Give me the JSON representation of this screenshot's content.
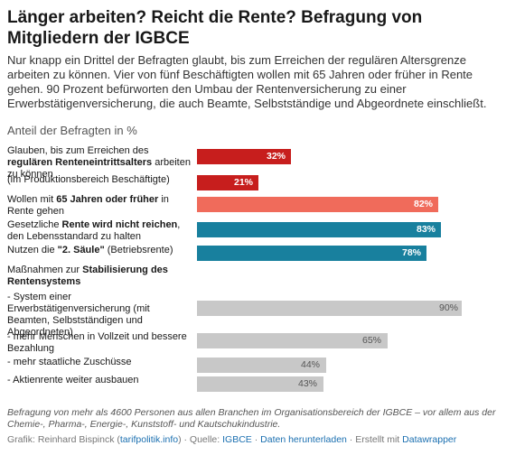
{
  "title": "Länger arbeiten? Reicht die Rente? Befragung von Mitgliedern der IGBCE",
  "intro": "Nur knapp ein Drittel der Befragten glaubt, bis zum Erreichen der regulären Altersgrenze arbeiten zu können. Vier von fünf Beschäftigten wollen mit 65 Jahren oder früher in Rente gehen. 90 Prozent befürworten den Umbau der Rentenversicherung zu einer Erwerbstätigenversicherung, die auch Beamte, Selbstständige und Abgeordnete einschließt.",
  "footnote": "Befragung von mehr als 4600 Personen aus allen Branchen im Organisationsbereich der IGBCE – vor allem aus der Chemie-, Pharma-, Energie-, Kunststoff- und Kautschukindustrie.",
  "credits": {
    "graphic_prefix": "Grafik: Reinhard Bispinck (",
    "graphic_link": "tarifpolitik.info",
    "graphic_suffix": ") · Quelle: ",
    "source_link": "IGBCE",
    "sep1": " · ",
    "download_link": "Daten herunterladen",
    "sep2": " · Erstellt mit ",
    "tool_link": "Datawrapper"
  },
  "colors": {
    "dark_red": "#c71e1d",
    "salmon": "#f06b5b",
    "teal": "#18809e",
    "gray": "#c8c8c8"
  },
  "chart_data": {
    "type": "bar",
    "orientation": "horizontal",
    "title": "Länger arbeiten? Reicht die Rente? Befragung von Mitgliedern der IGBCE",
    "subtitle": "Anteil der Befragten in %",
    "xlim": [
      0,
      100
    ],
    "grid": false,
    "rows": [
      {
        "label_parts": [
          [
            "Glauben, bis zum Erreichen des ",
            false
          ],
          [
            "regulären Renteneintrittsalters",
            true
          ],
          [
            " arbeiten zu können",
            false
          ]
        ],
        "value": 32,
        "value_label": "32%",
        "color": "#c71e1d"
      },
      {
        "label_parts": [
          [
            "(im Produktionsbereich Beschäftigte)",
            false
          ]
        ],
        "value": 21,
        "value_label": "21%",
        "color": "#c71e1d"
      },
      {
        "label_parts": [
          [
            "Wollen mit ",
            false
          ],
          [
            "65 Jahren oder früher",
            true
          ],
          [
            " in Rente gehen",
            false
          ]
        ],
        "value": 82,
        "value_label": "82%",
        "color": "#f06b5b"
      },
      {
        "label_parts": [
          [
            "Gesetzliche ",
            false
          ],
          [
            "Rente wird nicht reichen",
            true
          ],
          [
            ", den Lebensstandard zu halten",
            false
          ]
        ],
        "value": 83,
        "value_label": "83%",
        "color": "#18809e"
      },
      {
        "label_parts": [
          [
            "Nutzen die ",
            false
          ],
          [
            "\"2. Säule\"",
            true
          ],
          [
            " (Betriebsrente)",
            false
          ]
        ],
        "value": 78,
        "value_label": "78%",
        "color": "#18809e"
      },
      {
        "label_parts": [
          [
            "Maßnahmen zur ",
            false
          ],
          [
            "Stabilisierung des Rentensystems",
            true
          ]
        ],
        "value": null,
        "value_label": "",
        "color": "#c8c8c8"
      },
      {
        "label_parts": [
          [
            "- System einer Erwerbstätigenversicherung (mit Beamten, Selbstständigen und Abgeordneten)",
            false
          ]
        ],
        "value": 90,
        "value_label": "90%",
        "color": "#c8c8c8"
      },
      {
        "label_parts": [
          [
            "- mehr Menschen in Vollzeit und bessere Bezahlung",
            false
          ]
        ],
        "value": 65,
        "value_label": "65%",
        "color": "#c8c8c8"
      },
      {
        "label_parts": [
          [
            "- mehr staatliche Zuschüsse",
            false
          ]
        ],
        "value": 44,
        "value_label": "44%",
        "color": "#c8c8c8"
      },
      {
        "label_parts": [
          [
            "- Aktienrente weiter ausbauen",
            false
          ]
        ],
        "value": 43,
        "value_label": "43%",
        "color": "#c8c8c8"
      }
    ]
  }
}
